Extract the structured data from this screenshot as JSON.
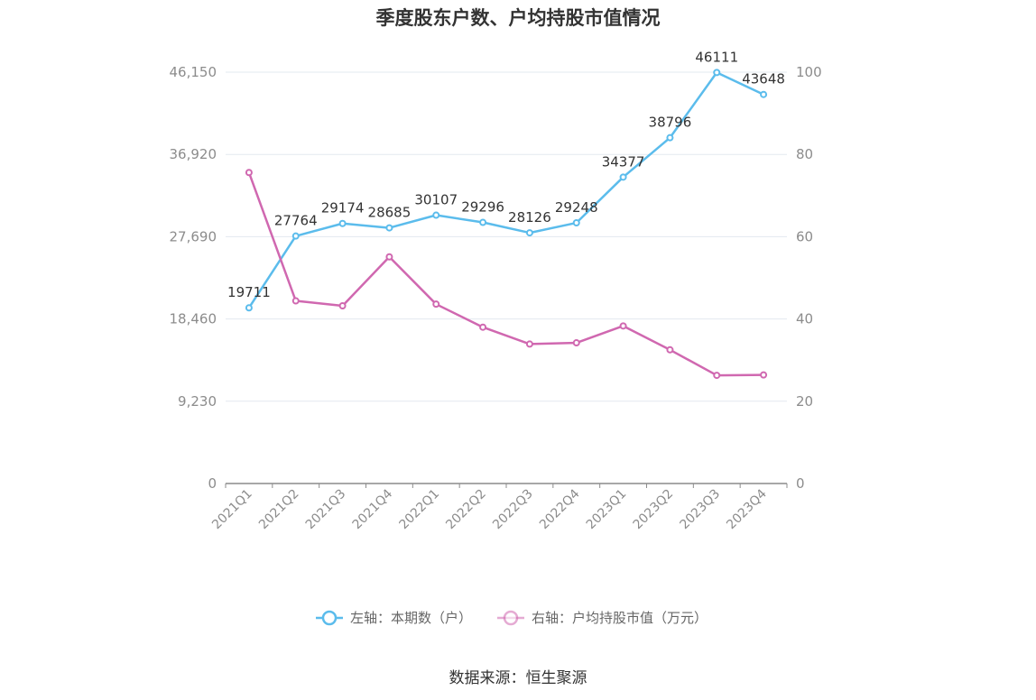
{
  "chart_data": {
    "type": "line",
    "title": "季度股东户数、户均持股市值情况",
    "categories": [
      "2021Q1",
      "2021Q2",
      "2021Q3",
      "2021Q4",
      "2022Q1",
      "2022Q2",
      "2022Q3",
      "2022Q4",
      "2023Q1",
      "2023Q2",
      "2023Q3",
      "2023Q4"
    ],
    "series": [
      {
        "name": "左轴：本期数（户）",
        "axis": "left",
        "color": "#5bbcec",
        "values": [
          19711,
          27764,
          29174,
          28685,
          30107,
          29296,
          28126,
          29248,
          34377,
          38796,
          46111,
          43648
        ],
        "labels": [
          "19711",
          "27764",
          "29174",
          "28685",
          "30107",
          "29296",
          "28126",
          "29248",
          "34377",
          "38796",
          "46111",
          "43648"
        ]
      },
      {
        "name": "右轴：户均持股市值（万元）",
        "axis": "right",
        "color": "#d068b0",
        "values": [
          75.6,
          44.4,
          43.2,
          55.1,
          43.6,
          38.0,
          33.9,
          34.2,
          38.3,
          32.5,
          26.3,
          26.4
        ]
      }
    ],
    "yleft": {
      "ylim": [
        0,
        46150
      ],
      "ticks": [
        0,
        9230,
        18460,
        27690,
        36920,
        46150
      ],
      "tick_labels": [
        "0",
        "9,230",
        "18,460",
        "27,690",
        "36,920",
        "46,150"
      ]
    },
    "yright": {
      "ylim": [
        0,
        100
      ],
      "ticks": [
        0,
        20,
        40,
        60,
        80,
        100
      ],
      "tick_labels": [
        "0",
        "20",
        "40",
        "60",
        "80",
        "100"
      ]
    },
    "grid": true,
    "legend_position": "bottom",
    "source": "数据来源：恒生聚源"
  }
}
